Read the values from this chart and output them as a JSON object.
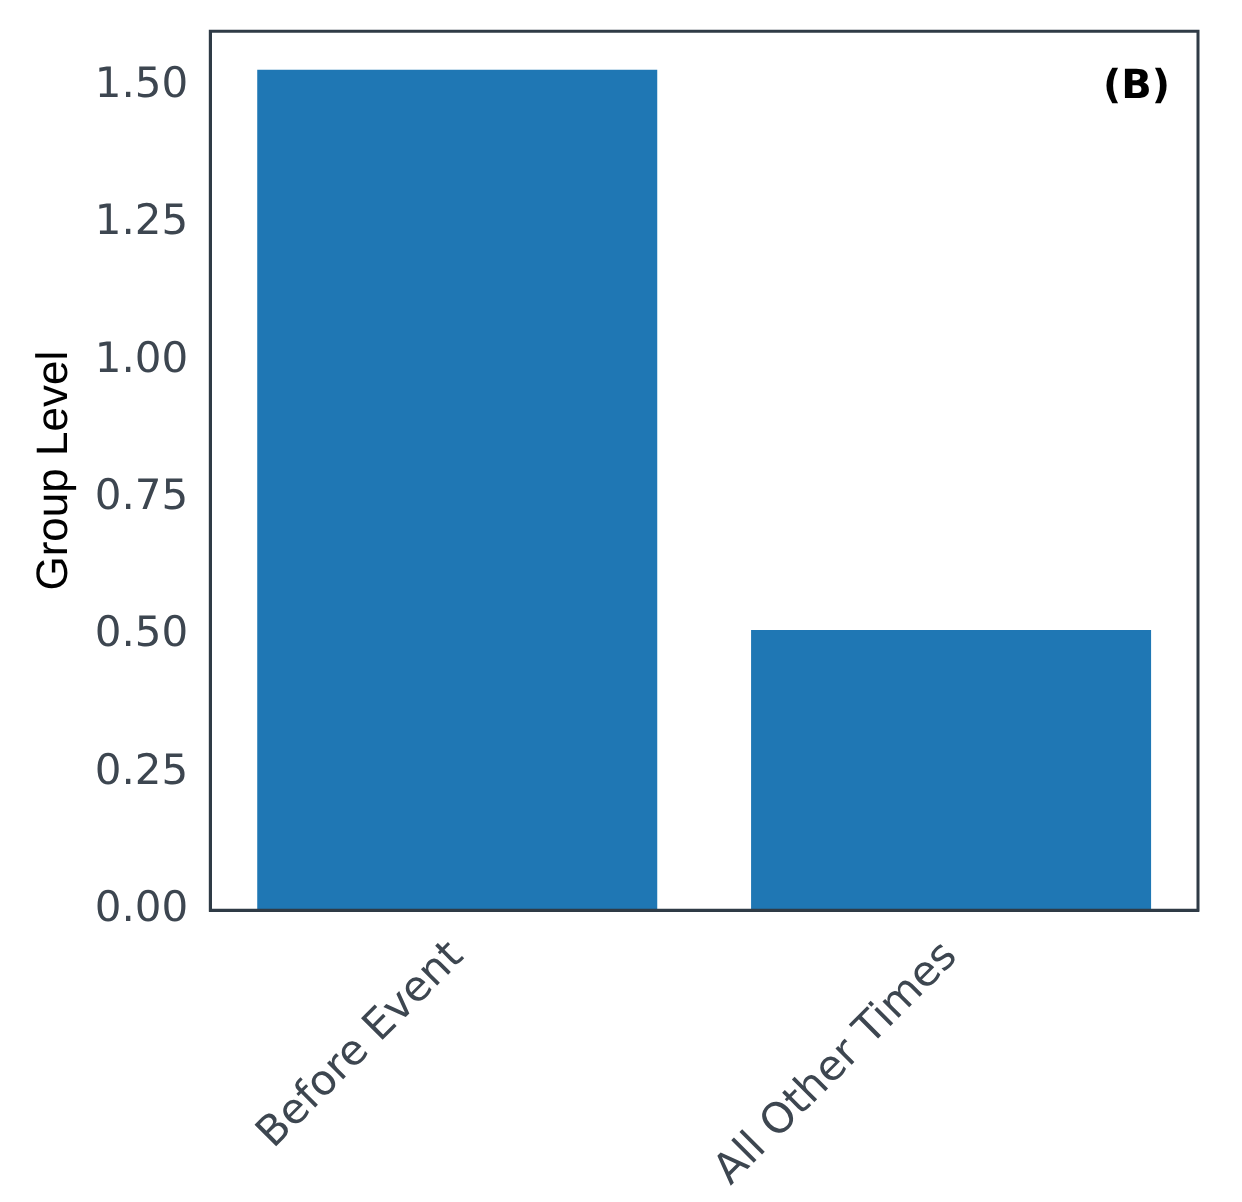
{
  "chart_data": {
    "type": "bar",
    "categories": [
      "Before Event",
      "All Other Times"
    ],
    "values": [
      1.53,
      0.51
    ],
    "color": "#1f77b4",
    "ylabel": "Group Level",
    "ylim": [
      0,
      1.6
    ],
    "yticks": [
      {
        "value": 0,
        "label": "0.00"
      },
      {
        "value": 0.25,
        "label": "0.25"
      },
      {
        "value": 0.5,
        "label": "0.50"
      },
      {
        "value": 0.75,
        "label": "0.75"
      },
      {
        "value": 1,
        "label": "1.00"
      },
      {
        "value": 1.25,
        "label": "1.25"
      },
      {
        "value": 1.5,
        "label": "1.50"
      }
    ],
    "annotations": [
      "(B)"
    ]
  }
}
